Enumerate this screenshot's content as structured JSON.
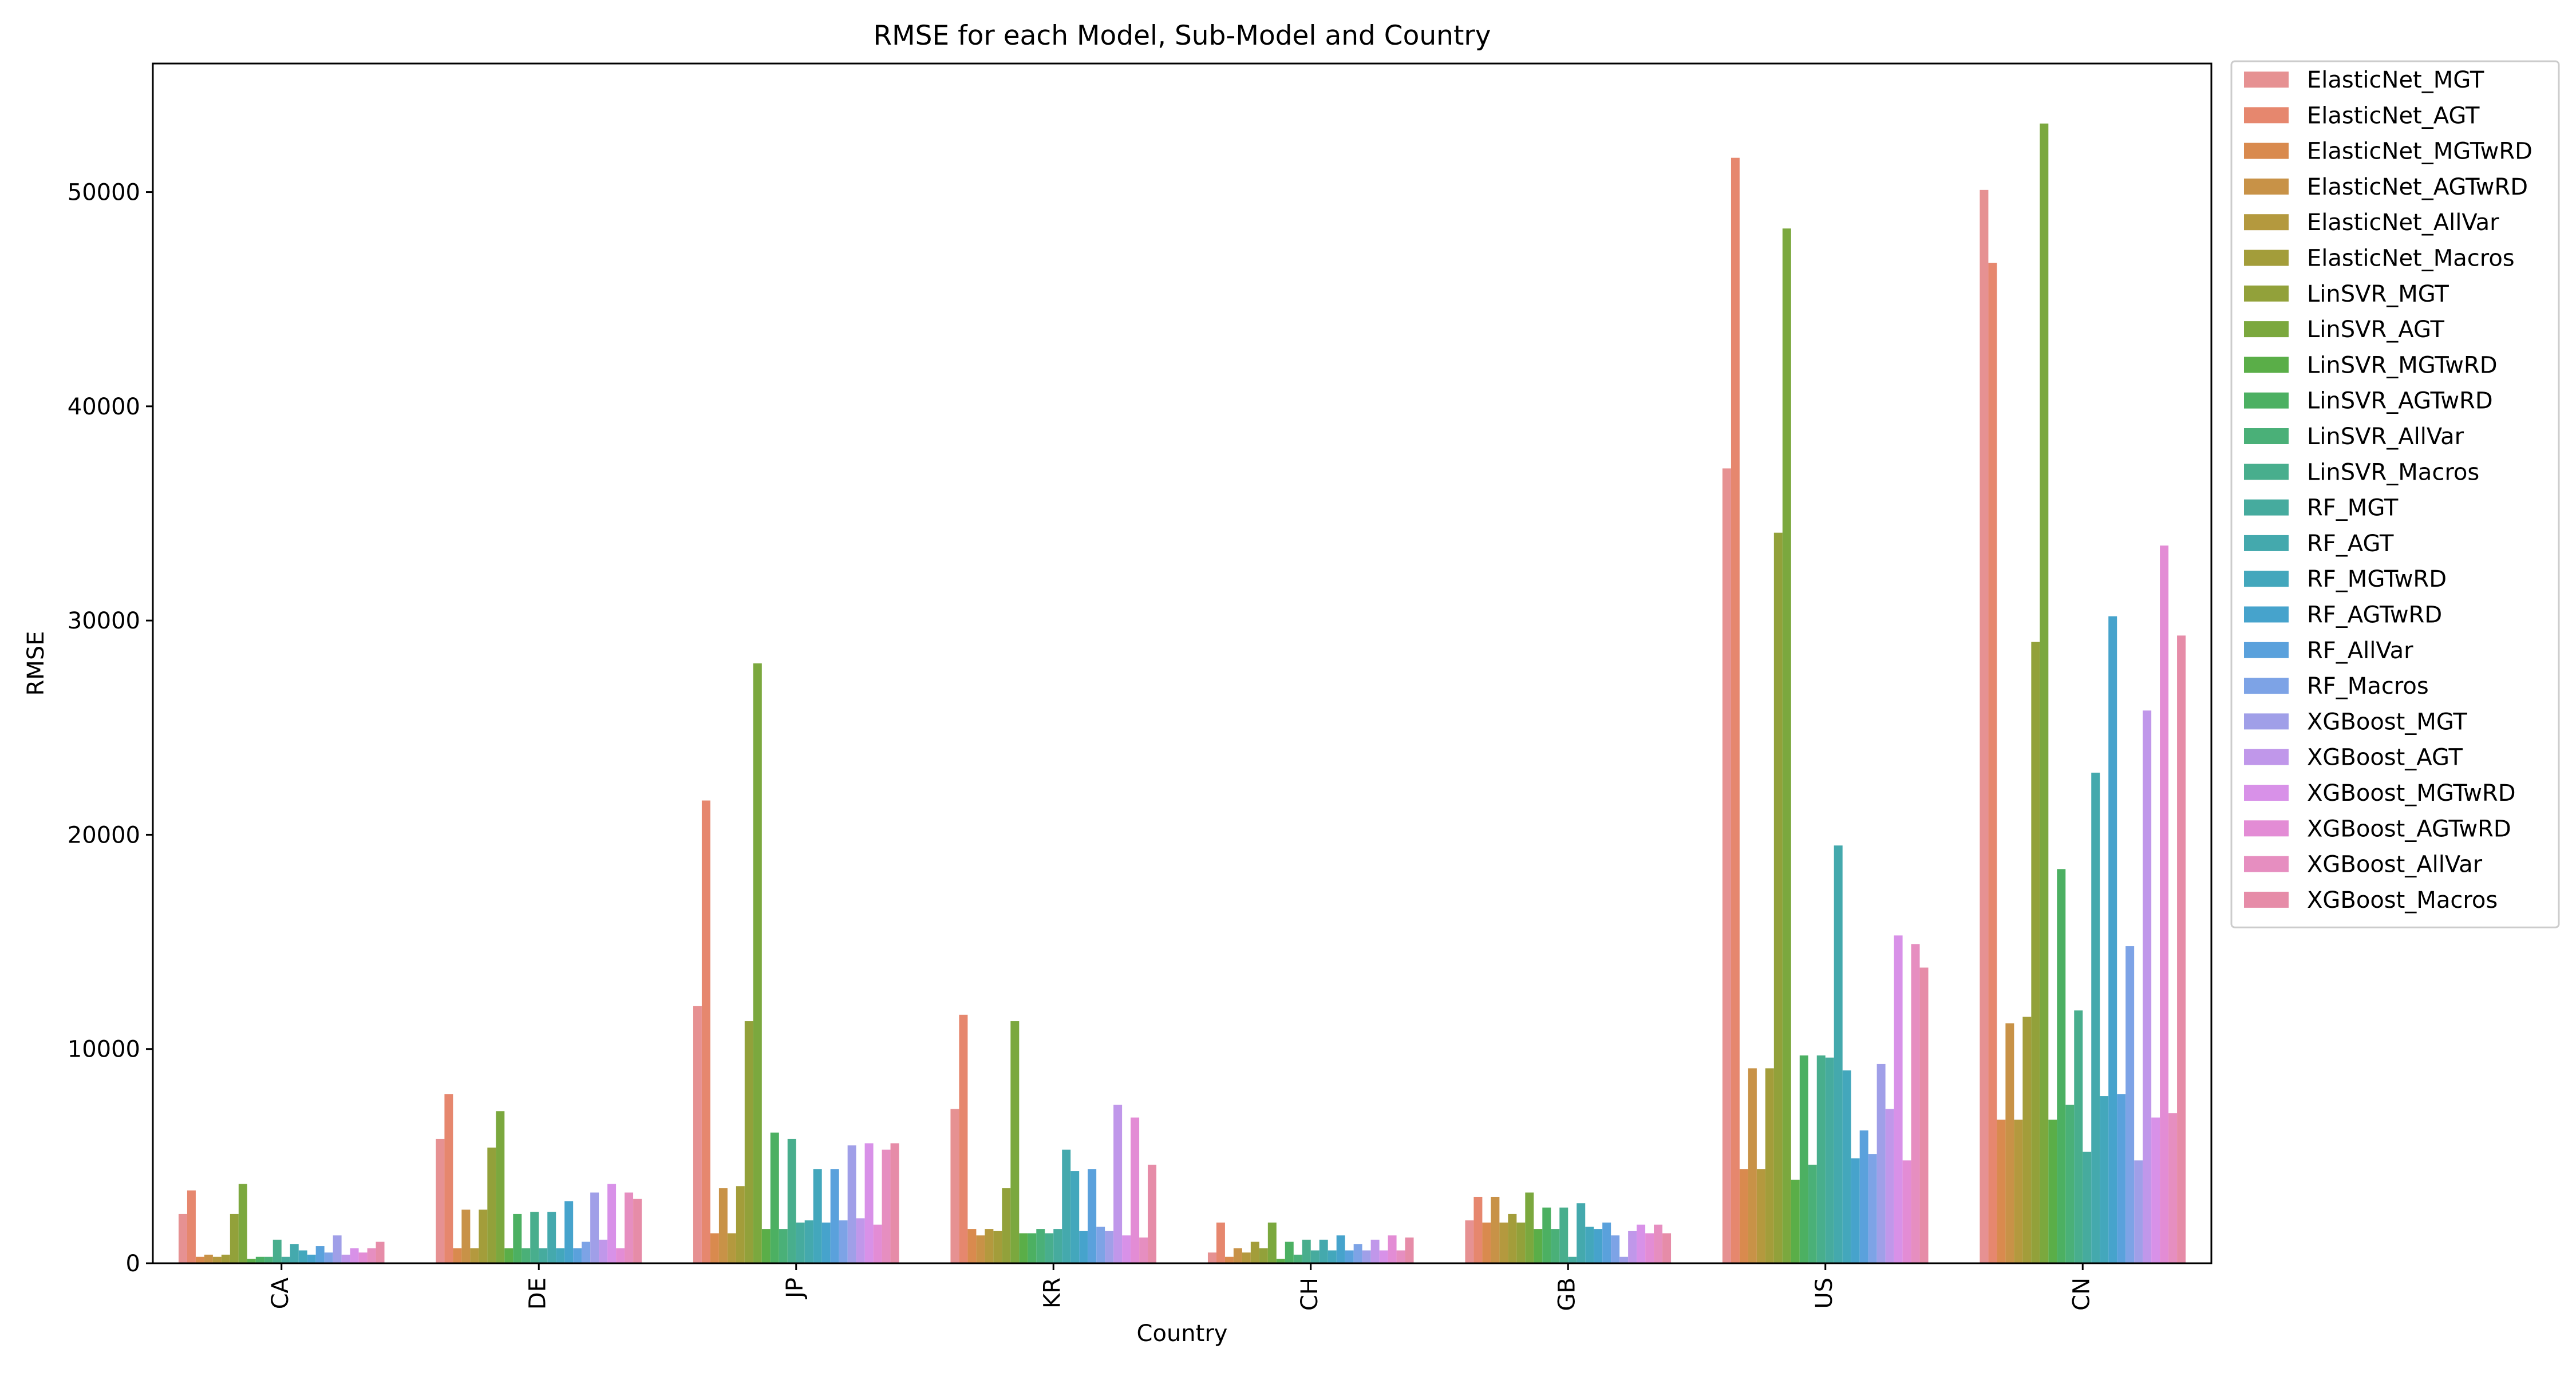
{
  "chart_data": {
    "type": "bar",
    "title": "RMSE for each Model, Sub-Model and Country",
    "xlabel": "Country",
    "ylabel": "RMSE",
    "ylim": [
      0,
      56000
    ],
    "yticks": [
      0,
      10000,
      20000,
      30000,
      40000,
      50000
    ],
    "legend_position": "outside-top-right",
    "categories": [
      "CA",
      "DE",
      "JP",
      "KR",
      "CH",
      "GB",
      "US",
      "CN"
    ],
    "series": [
      {
        "name": "ElasticNet_MGT",
        "color": "#e69192",
        "values": [
          2300,
          5800,
          12000,
          7200,
          500,
          2000,
          37100,
          50100
        ]
      },
      {
        "name": "ElasticNet_AGT",
        "color": "#e6876e",
        "values": [
          3400,
          7900,
          21600,
          11600,
          1900,
          3100,
          51600,
          46700
        ]
      },
      {
        "name": "ElasticNet_MGTwRD",
        "color": "#d98a4e",
        "values": [
          300,
          700,
          1400,
          1600,
          300,
          1900,
          4400,
          6700
        ]
      },
      {
        "name": "ElasticNet_AGTwRD",
        "color": "#c89247",
        "values": [
          400,
          2500,
          3500,
          1300,
          700,
          3100,
          9100,
          11200
        ]
      },
      {
        "name": "ElasticNet_AllVar",
        "color": "#b4993e",
        "values": [
          300,
          700,
          1400,
          1600,
          500,
          1900,
          4400,
          6700
        ]
      },
      {
        "name": "ElasticNet_Macros",
        "color": "#a39d3a",
        "values": [
          400,
          2500,
          3600,
          1500,
          1000,
          2300,
          9100,
          11500
        ]
      },
      {
        "name": "LinSVR_MGT",
        "color": "#92a13a",
        "values": [
          2300,
          5400,
          11300,
          3500,
          700,
          1900,
          34100,
          29000
        ]
      },
      {
        "name": "LinSVR_AGT",
        "color": "#7ba83e",
        "values": [
          3700,
          7100,
          28000,
          11300,
          1900,
          3300,
          48300,
          53200
        ]
      },
      {
        "name": "LinSVR_MGTwRD",
        "color": "#5aae48",
        "values": [
          200,
          700,
          1600,
          1400,
          200,
          1600,
          3900,
          6700
        ]
      },
      {
        "name": "LinSVR_AGTwRD",
        "color": "#4cb062",
        "values": [
          300,
          2300,
          6100,
          1400,
          1000,
          2600,
          9700,
          18400
        ]
      },
      {
        "name": "LinSVR_AllVar",
        "color": "#4ab078",
        "values": [
          300,
          700,
          1600,
          1600,
          400,
          1600,
          4600,
          7400
        ]
      },
      {
        "name": "LinSVR_Macros",
        "color": "#48ae8d",
        "values": [
          1100,
          2400,
          5800,
          1400,
          1100,
          2600,
          9700,
          11800
        ]
      },
      {
        "name": "RF_MGT",
        "color": "#46ab9e",
        "values": [
          300,
          700,
          1900,
          1600,
          600,
          300,
          9600,
          5200
        ]
      },
      {
        "name": "RF_AGT",
        "color": "#44a9ad",
        "values": [
          900,
          2400,
          2000,
          5300,
          1100,
          2800,
          19500,
          22900
        ]
      },
      {
        "name": "RF_MGTwRD",
        "color": "#43a7bc",
        "values": [
          600,
          700,
          4400,
          4300,
          600,
          1700,
          9000,
          7800
        ]
      },
      {
        "name": "RF_AGTwRD",
        "color": "#46a3cc",
        "values": [
          400,
          2900,
          1900,
          1500,
          1300,
          1600,
          4900,
          30200
        ]
      },
      {
        "name": "RF_AllVar",
        "color": "#5aa1dc",
        "values": [
          800,
          700,
          4400,
          4400,
          600,
          1900,
          6200,
          7900
        ]
      },
      {
        "name": "RF_Macros",
        "color": "#7da3e6",
        "values": [
          500,
          1000,
          2000,
          1700,
          900,
          1300,
          5100,
          14800
        ]
      },
      {
        "name": "XGBoost_MGT",
        "color": "#a09fe8",
        "values": [
          1300,
          3300,
          5500,
          1500,
          600,
          300,
          9300,
          4800
        ]
      },
      {
        "name": "XGBoost_AGT",
        "color": "#c097ea",
        "values": [
          400,
          1100,
          2100,
          7400,
          1100,
          1500,
          7200,
          25800
        ]
      },
      {
        "name": "XGBoost_MGTwRD",
        "color": "#d891e8",
        "values": [
          700,
          3700,
          5600,
          1300,
          600,
          1800,
          15300,
          6800
        ]
      },
      {
        "name": "XGBoost_AGTwRD",
        "color": "#e38cd5",
        "values": [
          500,
          700,
          1800,
          6800,
          1300,
          1400,
          4800,
          33500
        ]
      },
      {
        "name": "XGBoost_AllVar",
        "color": "#e68ec0",
        "values": [
          700,
          3300,
          5300,
          1200,
          600,
          1800,
          14900,
          7000
        ]
      },
      {
        "name": "XGBoost_Macros",
        "color": "#e68ca8",
        "values": [
          1000,
          3000,
          5600,
          4600,
          1200,
          1400,
          13800,
          29300
        ]
      }
    ]
  }
}
